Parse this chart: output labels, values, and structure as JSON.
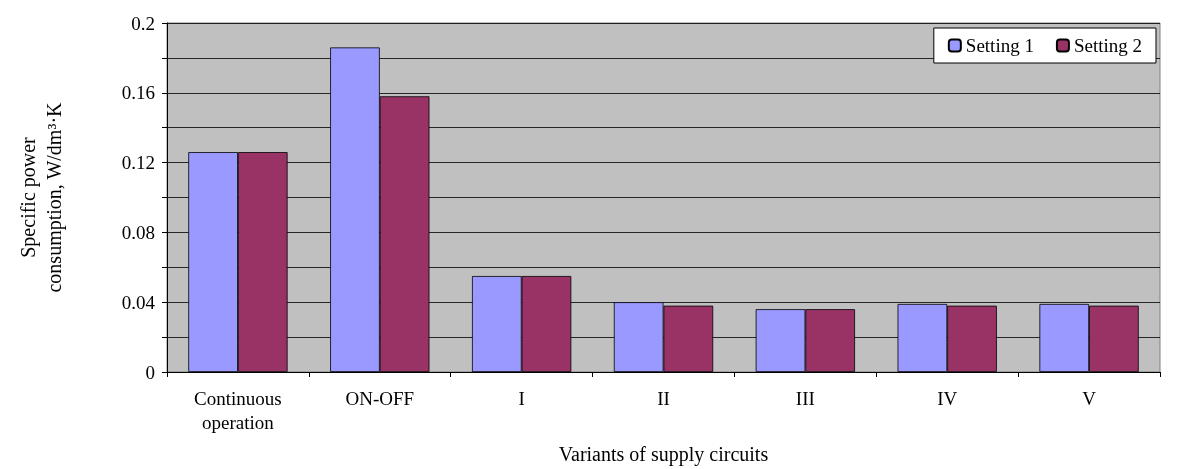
{
  "chart_data": {
    "type": "bar",
    "xlabel": "Variants of supply circuits",
    "ylabel": "Specific power\nconsumption, W/dm³·K",
    "categories": [
      "Continuous\noperation",
      "ON-OFF",
      "I",
      "II",
      "III",
      "IV",
      "V"
    ],
    "series": [
      {
        "name": "Setting 1",
        "color": "#9999ff",
        "values": [
          0.126,
          0.186,
          0.055,
          0.04,
          0.036,
          0.039,
          0.039
        ]
      },
      {
        "name": "Setting 2",
        "color": "#993366",
        "values": [
          0.126,
          0.158,
          0.055,
          0.038,
          0.036,
          0.038,
          0.038
        ]
      }
    ],
    "ylim": [
      0,
      0.2
    ],
    "yticks": [
      0,
      {
        "value": 0.02,
        "label": null
      },
      0.04,
      {
        "value": 0.06,
        "label": null
      },
      0.08,
      {
        "value": 0.1,
        "label": null
      },
      0.12,
      {
        "value": 0.14,
        "label": null
      },
      0.16,
      {
        "value": 0.18,
        "label": null
      },
      0.2
    ],
    "grid": "y",
    "legend": "top right"
  }
}
